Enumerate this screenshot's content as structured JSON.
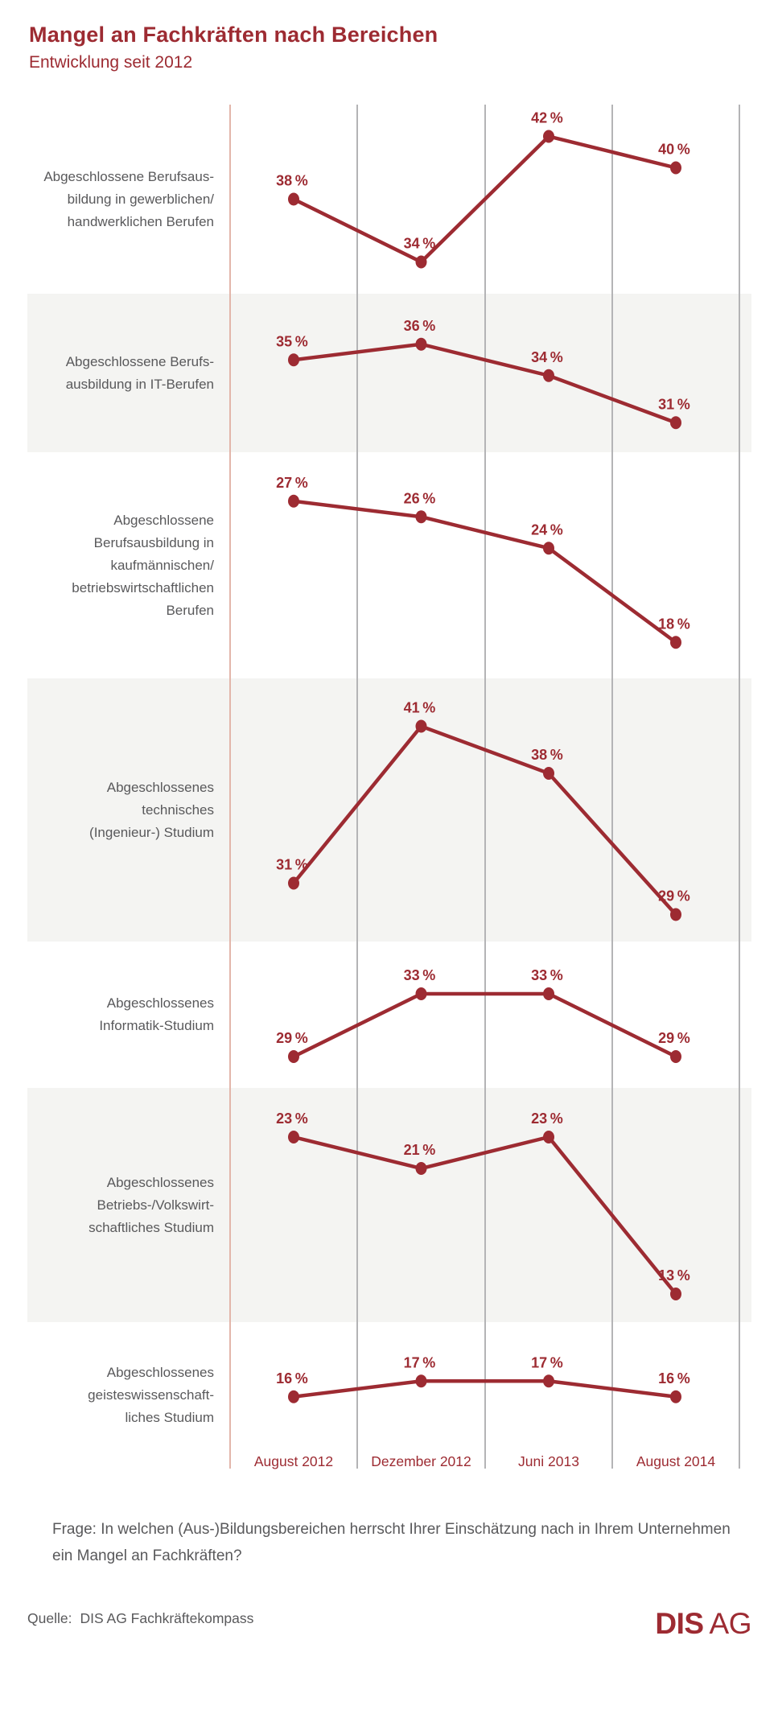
{
  "header": {
    "title": "Mangel an Fachkräften nach Bereichen",
    "subtitle": "Entwicklung seit 2012"
  },
  "colors": {
    "accent_red": "#9d2b32",
    "grid_first": "#e2b6aa",
    "grid_gray": "#b4b4b6",
    "band_gray": "#f4f4f2",
    "text_gray": "#59595b"
  },
  "chart_data": {
    "type": "line",
    "x_labels": [
      "August 2012",
      "Dezember 2012",
      "Juni 2013",
      "August 2014"
    ],
    "unit": "%",
    "ylim": [
      0,
      50
    ],
    "grid": "vertical-only",
    "legend_position": "none",
    "series": [
      {
        "name": "Abgeschlossene Berufsausbildung in gewerblichen/handwerklichen Berufen",
        "label_lines": [
          "Abgeschlossene Berufsaus-",
          "bildung in gewerblichen/",
          "handwerklichen Berufen"
        ],
        "values": [
          38,
          34,
          42,
          40
        ]
      },
      {
        "name": "Abgeschlossene Berufsausbildung in IT-Berufen",
        "label_lines": [
          "Abgeschlossene Berufs-",
          "ausbildung in IT-Berufen"
        ],
        "values": [
          35,
          36,
          34,
          31
        ]
      },
      {
        "name": "Abgeschlossene Berufsausbildung in kaufmännischen/betriebswirtschaftlichen Berufen",
        "label_lines": [
          "Abgeschlossene",
          "Berufsausbildung in",
          "kaufmännischen/",
          "betriebswirtschaftlichen",
          "Berufen"
        ],
        "values": [
          27,
          26,
          24,
          18
        ]
      },
      {
        "name": "Abgeschlossenes technisches (Ingenieur-) Studium",
        "label_lines": [
          "Abgeschlossenes",
          "technisches",
          "(Ingenieur-) Studium"
        ],
        "values": [
          31,
          41,
          38,
          29
        ]
      },
      {
        "name": "Abgeschlossenes Informatik-Studium",
        "label_lines": [
          "Abgeschlossenes",
          "Informatik-Studium"
        ],
        "values": [
          29,
          33,
          33,
          29
        ]
      },
      {
        "name": "Abgeschlossenes Betriebs-/Volkswirtschaftliches Studium",
        "label_lines": [
          "Abgeschlossenes",
          "Betriebs-/Volkswirt-",
          "schaftliches Studium"
        ],
        "values": [
          23,
          21,
          23,
          13
        ]
      },
      {
        "name": "Abgeschlossenes geisteswissenschaftliches Studium",
        "label_lines": [
          "Abgeschlossenes",
          "geisteswissenschaft-",
          "liches Studium"
        ],
        "values": [
          16,
          17,
          17,
          16
        ]
      }
    ]
  },
  "footer": {
    "question": "Frage: In welchen (Aus-)Bildungsbereichen herrscht Ihrer Einschätzung nach in Ihrem Unternehmen ein Mangel an Fachkräften?",
    "source_label": "Quelle:",
    "source_value": "DIS AG Fachkräftekompass",
    "logo_bold": "DIS",
    "logo_light": "AG"
  }
}
